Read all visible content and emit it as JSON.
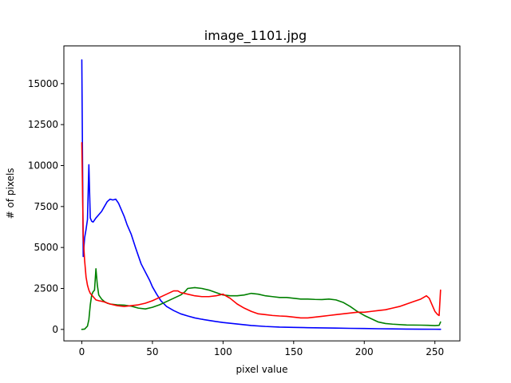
{
  "chart_data": {
    "type": "line",
    "title": "image_1101.jpg",
    "xlabel": "pixel value",
    "ylabel": "# of pixels",
    "xlim": [
      -12.7,
      267.7
    ],
    "ylim": [
      -700,
      17300
    ],
    "xticks": [
      0,
      50,
      100,
      150,
      200,
      250
    ],
    "yticks": [
      0,
      2500,
      5000,
      7500,
      10000,
      12500,
      15000
    ],
    "grid": false,
    "legend": "none",
    "series": [
      {
        "color": "#0000ff",
        "points": [
          [
            0,
            16450
          ],
          [
            1,
            4450
          ],
          [
            2,
            5600
          ],
          [
            3,
            6100
          ],
          [
            4,
            6700
          ],
          [
            5,
            10050
          ],
          [
            6,
            6800
          ],
          [
            7,
            6600
          ],
          [
            8,
            6550
          ],
          [
            10,
            6800
          ],
          [
            12,
            7000
          ],
          [
            14,
            7200
          ],
          [
            16,
            7500
          ],
          [
            18,
            7800
          ],
          [
            20,
            7950
          ],
          [
            22,
            7900
          ],
          [
            24,
            7950
          ],
          [
            26,
            7700
          ],
          [
            28,
            7300
          ],
          [
            30,
            6900
          ],
          [
            32,
            6400
          ],
          [
            35,
            5800
          ],
          [
            38,
            5000
          ],
          [
            40,
            4500
          ],
          [
            42,
            4000
          ],
          [
            45,
            3500
          ],
          [
            48,
            3000
          ],
          [
            50,
            2600
          ],
          [
            53,
            2150
          ],
          [
            56,
            1750
          ],
          [
            60,
            1400
          ],
          [
            65,
            1150
          ],
          [
            70,
            950
          ],
          [
            75,
            820
          ],
          [
            80,
            700
          ],
          [
            85,
            620
          ],
          [
            90,
            550
          ],
          [
            95,
            480
          ],
          [
            100,
            420
          ],
          [
            110,
            330
          ],
          [
            120,
            240
          ],
          [
            130,
            180
          ],
          [
            140,
            140
          ],
          [
            150,
            120
          ],
          [
            160,
            105
          ],
          [
            170,
            90
          ],
          [
            180,
            80
          ],
          [
            190,
            65
          ],
          [
            200,
            55
          ],
          [
            210,
            40
          ],
          [
            220,
            30
          ],
          [
            230,
            20
          ],
          [
            240,
            15
          ],
          [
            250,
            10
          ],
          [
            254,
            5
          ]
        ]
      },
      {
        "color": "#008000",
        "points": [
          [
            0,
            0
          ],
          [
            2,
            20
          ],
          [
            4,
            200
          ],
          [
            5,
            600
          ],
          [
            6,
            1500
          ],
          [
            7,
            2100
          ],
          [
            8,
            2300
          ],
          [
            9,
            2400
          ],
          [
            10,
            3700
          ],
          [
            11,
            2700
          ],
          [
            12,
            2100
          ],
          [
            14,
            1850
          ],
          [
            16,
            1700
          ],
          [
            18,
            1600
          ],
          [
            20,
            1550
          ],
          [
            25,
            1500
          ],
          [
            30,
            1480
          ],
          [
            35,
            1420
          ],
          [
            40,
            1300
          ],
          [
            45,
            1250
          ],
          [
            50,
            1350
          ],
          [
            55,
            1500
          ],
          [
            60,
            1700
          ],
          [
            65,
            1900
          ],
          [
            70,
            2100
          ],
          [
            73,
            2300
          ],
          [
            75,
            2500
          ],
          [
            80,
            2550
          ],
          [
            85,
            2500
          ],
          [
            90,
            2400
          ],
          [
            95,
            2250
          ],
          [
            100,
            2100
          ],
          [
            105,
            2050
          ],
          [
            110,
            2050
          ],
          [
            115,
            2100
          ],
          [
            120,
            2200
          ],
          [
            125,
            2150
          ],
          [
            130,
            2050
          ],
          [
            135,
            2000
          ],
          [
            140,
            1950
          ],
          [
            145,
            1950
          ],
          [
            150,
            1900
          ],
          [
            155,
            1850
          ],
          [
            160,
            1850
          ],
          [
            165,
            1830
          ],
          [
            170,
            1820
          ],
          [
            175,
            1850
          ],
          [
            180,
            1800
          ],
          [
            185,
            1650
          ],
          [
            190,
            1400
          ],
          [
            195,
            1100
          ],
          [
            200,
            850
          ],
          [
            205,
            650
          ],
          [
            210,
            450
          ],
          [
            215,
            360
          ],
          [
            220,
            320
          ],
          [
            230,
            270
          ],
          [
            240,
            260
          ],
          [
            245,
            250
          ],
          [
            250,
            230
          ],
          [
            253,
            250
          ],
          [
            254,
            450
          ]
        ]
      },
      {
        "color": "#ff0000",
        "points": [
          [
            0,
            11400
          ],
          [
            1,
            5600
          ],
          [
            2,
            4200
          ],
          [
            3,
            3200
          ],
          [
            4,
            2700
          ],
          [
            5,
            2400
          ],
          [
            6,
            2200
          ],
          [
            8,
            2000
          ],
          [
            10,
            1800
          ],
          [
            12,
            1750
          ],
          [
            15,
            1700
          ],
          [
            20,
            1550
          ],
          [
            25,
            1450
          ],
          [
            30,
            1400
          ],
          [
            35,
            1450
          ],
          [
            40,
            1500
          ],
          [
            45,
            1600
          ],
          [
            50,
            1750
          ],
          [
            55,
            1950
          ],
          [
            60,
            2150
          ],
          [
            65,
            2350
          ],
          [
            68,
            2350
          ],
          [
            70,
            2250
          ],
          [
            75,
            2150
          ],
          [
            80,
            2050
          ],
          [
            85,
            2000
          ],
          [
            90,
            2000
          ],
          [
            95,
            2050
          ],
          [
            100,
            2150
          ],
          [
            103,
            2000
          ],
          [
            105,
            1900
          ],
          [
            110,
            1550
          ],
          [
            115,
            1300
          ],
          [
            120,
            1100
          ],
          [
            125,
            950
          ],
          [
            130,
            900
          ],
          [
            135,
            850
          ],
          [
            140,
            820
          ],
          [
            145,
            800
          ],
          [
            150,
            750
          ],
          [
            155,
            700
          ],
          [
            160,
            700
          ],
          [
            165,
            750
          ],
          [
            170,
            800
          ],
          [
            175,
            850
          ],
          [
            180,
            900
          ],
          [
            185,
            950
          ],
          [
            190,
            1000
          ],
          [
            195,
            1050
          ],
          [
            200,
            1050
          ],
          [
            205,
            1100
          ],
          [
            210,
            1150
          ],
          [
            215,
            1200
          ],
          [
            220,
            1300
          ],
          [
            225,
            1400
          ],
          [
            230,
            1550
          ],
          [
            235,
            1700
          ],
          [
            240,
            1850
          ],
          [
            244,
            2050
          ],
          [
            246,
            1900
          ],
          [
            248,
            1500
          ],
          [
            250,
            1100
          ],
          [
            252,
            900
          ],
          [
            253,
            850
          ],
          [
            254,
            2400
          ]
        ]
      }
    ]
  }
}
